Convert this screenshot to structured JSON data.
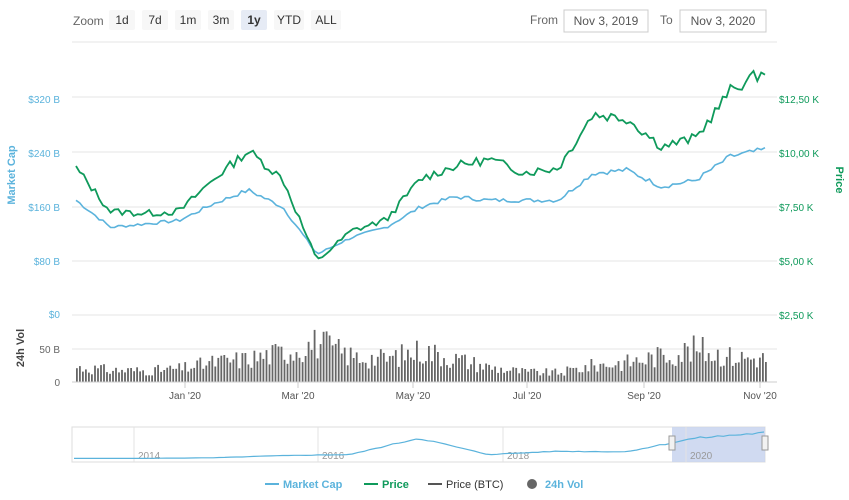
{
  "toolbar": {
    "zoom_label": "Zoom",
    "zoom_buttons": [
      "1d",
      "7d",
      "1m",
      "3m",
      "1y",
      "YTD",
      "ALL"
    ],
    "selected_zoom": "1y",
    "from_label": "From",
    "from_value": "Nov 3, 2019",
    "to_label": "To",
    "to_value": "Nov 3, 2020"
  },
  "colors": {
    "market_cap": "#5bb3dc",
    "price": "#0f9a5b",
    "price_btc": "#555555",
    "volume": "#666666",
    "grid": "#e6e6e6",
    "navigator_selection": "#c8d4ee"
  },
  "chart_data": {
    "type": "line",
    "x": [
      "Nov 3, 2019",
      "Nov 23, 2019",
      "Dec 13, 2019",
      "Jan 2, 2020",
      "Jan 22, 2020",
      "Feb 11, 2020",
      "Mar 2, 2020",
      "Mar 12, 2020",
      "Mar 22, 2020",
      "Apr 11, 2020",
      "May 1, 2020",
      "May 21, 2020",
      "Jun 10, 2020",
      "Jun 30, 2020",
      "Jul 20, 2020",
      "Aug 9, 2020",
      "Aug 29, 2020",
      "Sep 18, 2020",
      "Oct 8, 2020",
      "Oct 21, 2020",
      "Nov 3, 2020"
    ],
    "series": [
      {
        "name": "Market Cap",
        "axis": "Market Cap",
        "values": [
          170,
          130,
          135,
          140,
          165,
          185,
          160,
          90,
          115,
          130,
          160,
          175,
          170,
          170,
          170,
          210,
          215,
          190,
          200,
          235,
          245
        ]
      },
      {
        "name": "Price",
        "axis": "Price",
        "values": [
          9300,
          7300,
          7200,
          7300,
          8800,
          10100,
          8800,
          5000,
          6400,
          6900,
          8800,
          9400,
          9700,
          9100,
          9300,
          11800,
          11600,
          10300,
          10700,
          12900,
          13800
        ]
      },
      {
        "name": "24h Vol",
        "axis": "24h Vol",
        "values": [
          22,
          18,
          17,
          20,
          30,
          35,
          45,
          60,
          38,
          35,
          48,
          35,
          22,
          15,
          14,
          25,
          30,
          40,
          50,
          38,
          35
        ]
      }
    ],
    "axes": {
      "market_cap": {
        "label": "Market Cap",
        "ticks": [
          "$80 B",
          "$160 B",
          "$240 B",
          "$320 B"
        ],
        "range": [
          40,
          380
        ]
      },
      "price": {
        "label": "Price",
        "ticks": [
          "$2,50 K",
          "$5,00 K",
          "$7,50 K",
          "$10,00 K",
          "$12,50 K"
        ],
        "range": [
          2500,
          15000
        ]
      },
      "volume": {
        "label": "24h Vol",
        "ticks": [
          "0",
          "50 B",
          "$0"
        ],
        "range": [
          0,
          100
        ]
      },
      "x_ticks": [
        "Jan '20",
        "Mar '20",
        "May '20",
        "Jul '20",
        "Sep '20",
        "Nov '20"
      ]
    },
    "navigator": {
      "years": [
        "2014",
        "2016",
        "2018",
        "2020"
      ],
      "values": [
        0.3,
        0.3,
        0.4,
        0.8,
        1,
        4,
        1,
        1.6,
        1.5,
        4,
        5
      ]
    },
    "legend": [
      "Market Cap",
      "Price",
      "Price (BTC)",
      "24h Vol"
    ],
    "legend_position": "bottom",
    "grid": true
  }
}
